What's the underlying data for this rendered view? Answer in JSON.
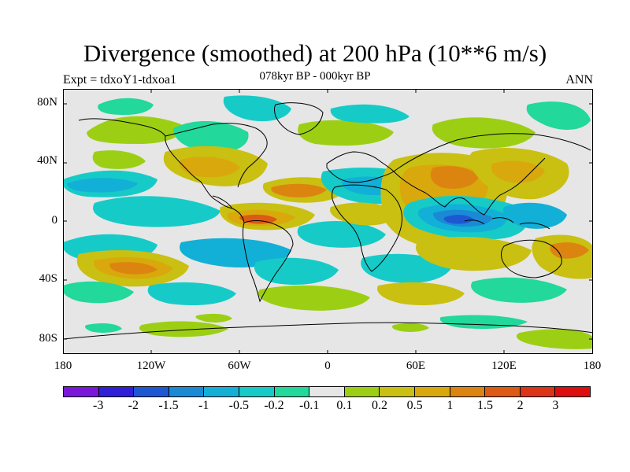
{
  "title": "Divergence (smoothed) at 200 hPa (10**6 m/s)",
  "subtitle_left": "Expt = tdxoY1-tdxoa1",
  "subtitle_center": "078kyr BP - 000kyr BP",
  "subtitle_right": "ANN",
  "lat_labels": [
    "80N",
    "40N",
    "0",
    "40S",
    "80S"
  ],
  "lon_labels": [
    "180",
    "120W",
    "60W",
    "0",
    "60E",
    "120E",
    "180"
  ],
  "legend": {
    "labels": [
      "-3",
      "-2",
      "-1.5",
      "-1",
      "-0.5",
      "-0.2",
      "-0.1",
      "0.1",
      "0.2",
      "0.5",
      "1",
      "1.5",
      "2",
      "3"
    ],
    "colors": [
      "#7a17d9",
      "#2f1fd6",
      "#1d57d2",
      "#1a8ad4",
      "#12b0d6",
      "#16cbc7",
      "#22d89a",
      "#e6e6e6",
      "#9ccf14",
      "#c9c012",
      "#d9a80c",
      "#dc8410",
      "#dc5a14",
      "#dc3416",
      "#dc0e10"
    ]
  },
  "colors": {
    "background": "#e6e6e6",
    "coastline": "#000000"
  }
}
